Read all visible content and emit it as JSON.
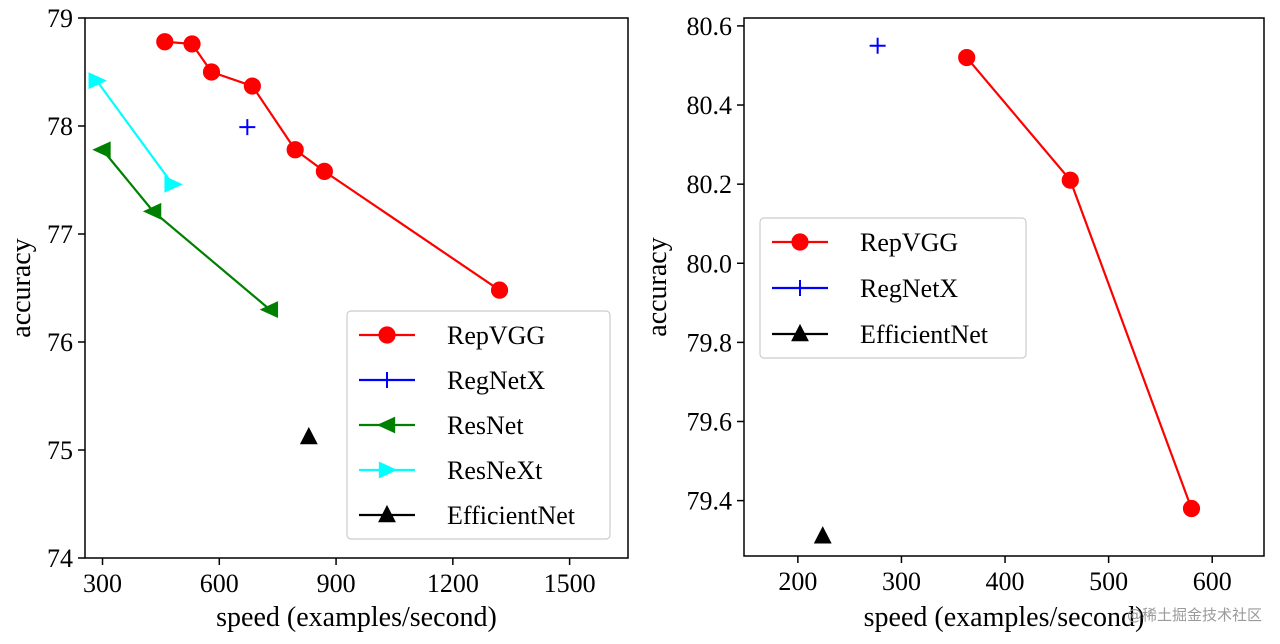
{
  "chart_data": [
    {
      "type": "line",
      "xlabel": "speed (examples/second)",
      "ylabel": "accuracy",
      "xlim": [
        255,
        1650
      ],
      "ylim": [
        74,
        79
      ],
      "xticks": [
        300,
        600,
        900,
        1200,
        1500
      ],
      "xtick_labels": [
        "300",
        "600",
        "900",
        "1200",
        "1500"
      ],
      "yticks": [
        74,
        75,
        76,
        77,
        78,
        79
      ],
      "ytick_labels": [
        "74",
        "75",
        "76",
        "77",
        "78",
        "79"
      ],
      "grid": false,
      "legend_position": "lower-right",
      "series": [
        {
          "name": "RepVGG",
          "marker": "circle",
          "color": "#ff0000",
          "line": true,
          "x": [
            460,
            530,
            580,
            685,
            795,
            870,
            1320
          ],
          "y": [
            78.78,
            78.76,
            78.5,
            78.37,
            77.78,
            77.58,
            76.48
          ]
        },
        {
          "name": "RegNetX",
          "marker": "plus",
          "color": "#0000ff",
          "line": false,
          "x": [
            672
          ],
          "y": [
            77.99
          ]
        },
        {
          "name": "ResNet",
          "marker": "triangle-left",
          "color": "#008000",
          "line": true,
          "x": [
            300,
            430,
            730
          ],
          "y": [
            77.78,
            77.21,
            76.3
          ]
        },
        {
          "name": "ResNeXt",
          "marker": "triangle-right",
          "color": "#00ffff",
          "line": true,
          "x": [
            285,
            480
          ],
          "y": [
            78.42,
            77.46
          ]
        },
        {
          "name": "EfficientNet",
          "marker": "triangle-up",
          "color": "#000000",
          "line": false,
          "x": [
            830
          ],
          "y": [
            75.12
          ]
        }
      ]
    },
    {
      "type": "line",
      "xlabel": "speed (examples/second)",
      "ylabel": "accuracy",
      "xlim": [
        148,
        650
      ],
      "ylim": [
        79.26,
        80.62
      ],
      "xticks": [
        200,
        300,
        400,
        500,
        600
      ],
      "xtick_labels": [
        "200",
        "300",
        "400",
        "500",
        "600"
      ],
      "yticks": [
        79.4,
        79.6,
        79.8,
        80.0,
        80.2,
        80.4,
        80.6
      ],
      "ytick_labels": [
        "79.4",
        "79.6",
        "79.8",
        "80.0",
        "80.2",
        "80.4",
        "80.6"
      ],
      "grid": false,
      "legend_position": "center-left",
      "series": [
        {
          "name": "RepVGG",
          "marker": "circle",
          "color": "#ff0000",
          "line": true,
          "x": [
            363,
            463,
            580
          ],
          "y": [
            80.52,
            80.21,
            79.38
          ]
        },
        {
          "name": "RegNetX",
          "marker": "plus",
          "color": "#0000ff",
          "line": false,
          "x": [
            277
          ],
          "y": [
            80.55
          ]
        },
        {
          "name": "EfficientNet",
          "marker": "triangle-up",
          "color": "#000000",
          "line": false,
          "x": [
            224
          ],
          "y": [
            79.31
          ]
        }
      ]
    }
  ],
  "watermark": "@稀土掘金技术社区"
}
